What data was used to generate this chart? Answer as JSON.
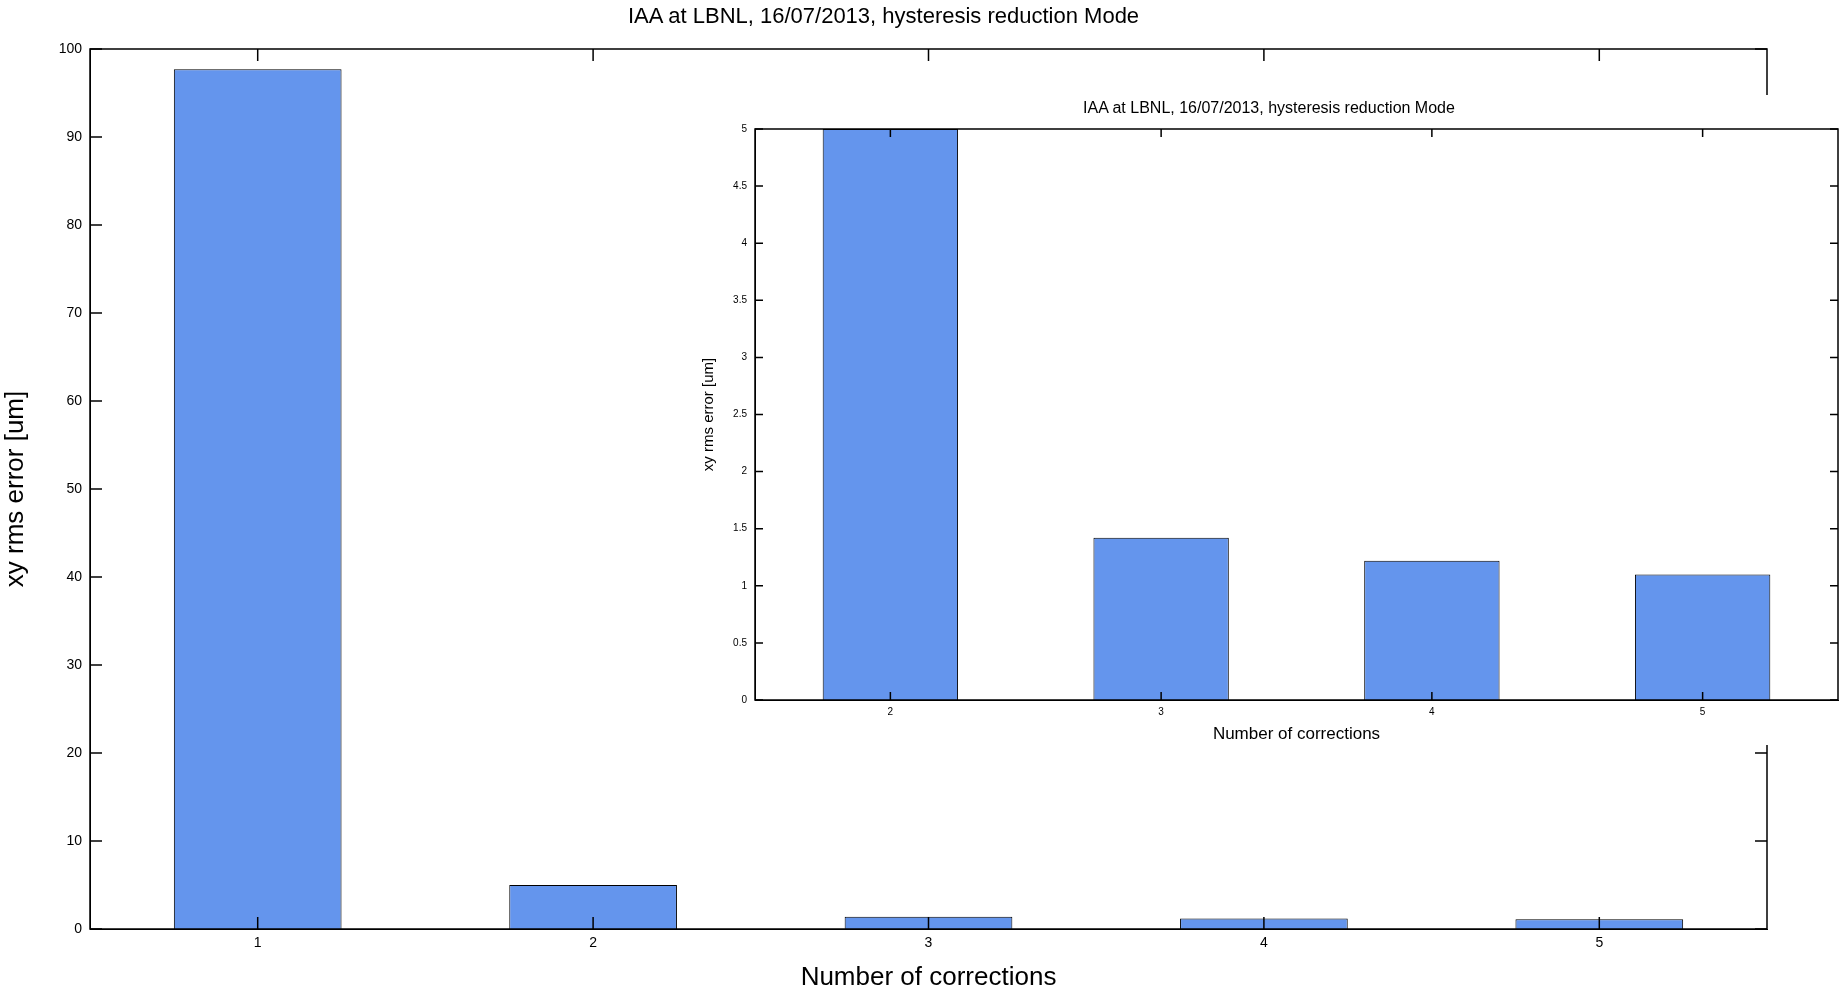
{
  "chart_data": [
    {
      "type": "bar",
      "title": "IAA at LBNL, 16/07/2013, hysteresis reduction Mode",
      "xlabel": "Number of corrections",
      "ylabel": "xy rms error [um]",
      "categories": [
        "1",
        "2",
        "3",
        "4",
        "5"
      ],
      "values": [
        97.7,
        5,
        1.4,
        1.2,
        1.1
      ],
      "color": "#6495ed",
      "ylim": [
        0,
        100
      ],
      "yticks": [
        0,
        10,
        20,
        30,
        40,
        50,
        60,
        70,
        80,
        90,
        100
      ],
      "grid": false,
      "legend": false
    },
    {
      "type": "bar",
      "title": "IAA at LBNL, 16/07/2013, hysteresis reduction Mode",
      "xlabel": "Number of corrections",
      "ylabel": "xy rms error [um]",
      "categories": [
        "2",
        "3",
        "4",
        "5"
      ],
      "values": [
        5,
        1.42,
        1.22,
        1.1
      ],
      "color": "#6495ed",
      "ylim": [
        0,
        5
      ],
      "yticks": [
        0,
        0.5,
        1,
        1.5,
        2,
        2.5,
        3,
        3.5,
        4,
        4.5,
        5
      ],
      "grid": false,
      "legend": false
    }
  ]
}
